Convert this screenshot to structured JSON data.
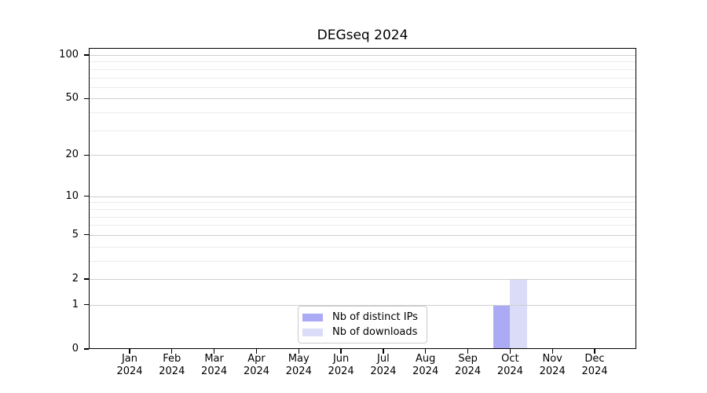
{
  "chart_data": {
    "type": "bar",
    "title": "DEGseq 2024",
    "categories": [
      "Jan",
      "Feb",
      "Mar",
      "Apr",
      "May",
      "Jun",
      "Jul",
      "Aug",
      "Sep",
      "Oct",
      "Nov",
      "Dec"
    ],
    "category_year": "2024",
    "series": [
      {
        "name": "Nb of distinct IPs",
        "color": "#aaaaf5",
        "values": [
          0,
          0,
          0,
          0,
          0,
          0,
          0,
          0,
          0,
          1,
          0,
          0
        ]
      },
      {
        "name": "Nb of downloads",
        "color": "#dbdcf8",
        "values": [
          0,
          0,
          0,
          0,
          0,
          0,
          0,
          0,
          0,
          2,
          0,
          0
        ]
      }
    ],
    "yscale": "log1p",
    "ylim": [
      0,
      105
    ],
    "y_tick_values": [
      0,
      1,
      2,
      5,
      10,
      20,
      50,
      100
    ],
    "y_tick_labels": [
      "0",
      "1",
      "2",
      "5",
      "10",
      "20",
      "50",
      "100"
    ],
    "y_minor_gridlines": [
      3,
      4,
      6,
      7,
      8,
      9,
      30,
      40,
      60,
      70,
      80,
      90
    ],
    "xlabel": "",
    "ylabel": "",
    "grid": "both",
    "legend_position": "lower center",
    "colors": {
      "major_grid": "#cfcfcf",
      "minor_grid": "#ececec",
      "axis": "#000000",
      "legend_border": "#c9c9c9",
      "background": "#ffffff",
      "text": "#000000"
    }
  }
}
